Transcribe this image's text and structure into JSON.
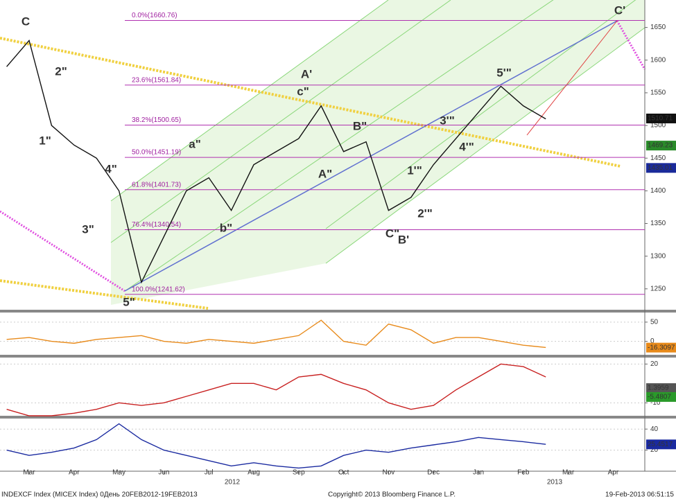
{
  "chart_data": [
    {
      "type": "line",
      "categories": [
        null,
        "Mar",
        null,
        "Apr",
        null,
        "May",
        null,
        "Jun",
        null,
        "Jul",
        null,
        "Aug",
        null,
        "Sep",
        null,
        "Oct",
        null,
        "Nov",
        null,
        "Dec",
        null,
        "Jan",
        null,
        "Feb",
        null,
        "Mar",
        null,
        "Apr"
      ],
      "series": [
        {
          "color": "#111111",
          "values": [
            1590,
            1630,
            1500,
            1470,
            1450,
            1400,
            1260,
            1330,
            1400,
            1420,
            1370,
            1440,
            1460,
            1480,
            1530,
            1460,
            1475,
            1370,
            1390,
            1440,
            1480,
            1520,
            1560,
            1530,
            1510,
            null,
            null,
            null
          ]
        }
      ],
      "ylim": [
        1218,
        1692
      ],
      "yticks": [
        1250,
        1300,
        1350,
        1400,
        1450,
        1500,
        1550,
        1600,
        1650
      ],
      "fib_levels": [
        {
          "value": 1660.76,
          "label": "0.0%(1660.76)"
        },
        {
          "value": 1561.84,
          "label": "23.6%(1561.84)"
        },
        {
          "value": 1500.65,
          "label": "38.2%(1500.65)"
        },
        {
          "value": 1451.19,
          "label": "50.0%(1451.19)"
        },
        {
          "value": 1401.73,
          "label": "61.8%(1401.73)"
        },
        {
          "value": 1340.54,
          "label": "76.4%(1340.54)"
        },
        {
          "value": 1241.62,
          "label": "100.0%(1241.62)"
        }
      ],
      "fib_color": "#b030b0",
      "last_values": [
        {
          "value": 1510.71,
          "color": "#111111"
        },
        {
          "value": 1469.23,
          "color": "#2a8a2a"
        },
        {
          "value": 1435.01,
          "color": "#1a2a9a"
        }
      ],
      "annotations": [
        {
          "text": "C",
          "color": "#d81818"
        },
        {
          "text": "2\"",
          "color": "#3aa03a"
        },
        {
          "text": "1\"",
          "color": "#3aa03a"
        },
        {
          "text": "4\"",
          "color": "#3aa03a"
        },
        {
          "text": "3\"",
          "color": "#3aa03a"
        },
        {
          "text": "5\"",
          "color": "#3aa03a"
        },
        {
          "text": "a\"",
          "color": "#3aa03a"
        },
        {
          "text": "b\"",
          "color": "#3aa03a"
        },
        {
          "text": "c\"",
          "color": "#3aa03a"
        },
        {
          "text": "A'",
          "color": "#5050c0"
        },
        {
          "text": "A\"",
          "color": "#d81818"
        },
        {
          "text": "B\"",
          "color": "#d81818"
        },
        {
          "text": "C\"",
          "color": "#d81818"
        },
        {
          "text": "B'",
          "color": "#5050c0"
        },
        {
          "text": "1'\"",
          "color": "#3aa03a"
        },
        {
          "text": "2'\"",
          "color": "#3aa03a"
        },
        {
          "text": "3'\"",
          "color": "#3aa03a"
        },
        {
          "text": "4'\"",
          "color": "#3aa03a"
        },
        {
          "text": "5'\"",
          "color": "#3aa03a"
        },
        {
          "text": "C'",
          "color": "#5050c0"
        }
      ],
      "years": [
        "2012",
        "2013"
      ]
    },
    {
      "type": "line",
      "series": [
        {
          "color": "#e88a1a",
          "values": [
            5,
            10,
            0,
            -5,
            5,
            10,
            15,
            0,
            -5,
            5,
            0,
            -5,
            5,
            15,
            55,
            0,
            -10,
            45,
            30,
            -5,
            10,
            10,
            0,
            -10,
            -16,
            null,
            null,
            null
          ]
        }
      ],
      "ylim": [
        -35,
        75
      ],
      "yticks": [
        0,
        50
      ],
      "last_value": -16.3097
    },
    {
      "type": "line",
      "series": [
        {
          "color": "#c82020",
          "values": [
            -15,
            -20,
            -20,
            -18,
            -15,
            -10,
            -12,
            -10,
            -5,
            0,
            5,
            5,
            0,
            10,
            12,
            5,
            0,
            -10,
            -15,
            -12,
            0,
            10,
            20,
            18,
            10,
            null,
            null,
            null
          ]
        }
      ],
      "ylim": [
        -20,
        25
      ],
      "yticks": [
        20,
        -10
      ],
      "last_values": [
        1.3959,
        -5.4807
      ]
    },
    {
      "type": "line",
      "series": [
        {
          "color": "#1a2aa0",
          "values": [
            20,
            15,
            18,
            22,
            30,
            45,
            30,
            20,
            15,
            10,
            5,
            8,
            5,
            3,
            5,
            15,
            20,
            18,
            22,
            25,
            28,
            32,
            30,
            28,
            25.5,
            null,
            null,
            null
          ]
        }
      ],
      "ylim": [
        0,
        50
      ],
      "yticks": [
        40,
        20
      ],
      "last_value": 25.4517
    }
  ],
  "footer": {
    "left": "INDEXCF Index (MICEX Index) 0День 20FEB2012-19FEB2013",
    "center": "Copyright© 2013 Bloomberg Finance L.P.",
    "right": "19-Feb-2013 06:51:15"
  }
}
